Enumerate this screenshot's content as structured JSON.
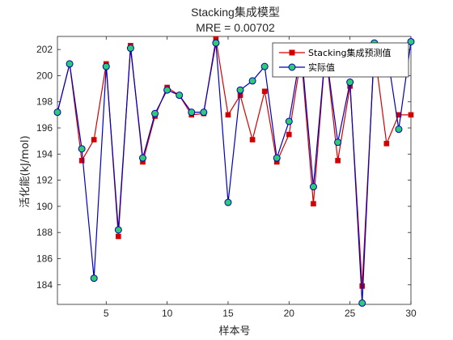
{
  "chart_data": {
    "type": "line",
    "title": "Stacking集成模型",
    "subtitle": "MRE = 0.00702",
    "xlabel": "样本号",
    "ylabel": "活化能(kJ/mol)",
    "xlim": [
      1,
      30
    ],
    "ylim": [
      182.5,
      203
    ],
    "xticks": [
      5,
      10,
      15,
      20,
      25,
      30
    ],
    "yticks": [
      184,
      186,
      188,
      190,
      192,
      194,
      196,
      198,
      200,
      202
    ],
    "legend_position": "top-right",
    "grid": false,
    "x": [
      1,
      2,
      3,
      4,
      5,
      6,
      7,
      8,
      9,
      10,
      11,
      12,
      13,
      14,
      15,
      16,
      17,
      18,
      19,
      20,
      21,
      22,
      23,
      24,
      25,
      26,
      27,
      28,
      29,
      30
    ],
    "series": [
      {
        "name": "Stacking集成预测值",
        "color": "#d40000",
        "marker": "square",
        "values": [
          197.2,
          200.9,
          193.5,
          195.1,
          200.9,
          187.7,
          202.3,
          193.4,
          196.9,
          199.1,
          198.5,
          197.0,
          197.1,
          202.8,
          197.0,
          198.5,
          195.1,
          198.8,
          193.4,
          195.5,
          201.5,
          190.2,
          202.0,
          193.5,
          199.2,
          183.9,
          202.0,
          194.8,
          197.0,
          197.0
        ]
      },
      {
        "name": "实际值",
        "color": "#0000bd",
        "marker": "circle",
        "marker_fill": "#2ecc71",
        "values": [
          197.2,
          200.9,
          194.4,
          184.5,
          200.7,
          188.2,
          202.1,
          193.7,
          197.1,
          198.9,
          198.5,
          197.2,
          197.2,
          202.5,
          190.3,
          198.9,
          199.6,
          200.7,
          193.7,
          196.5,
          202.0,
          191.5,
          202.0,
          194.9,
          199.5,
          182.6,
          202.5,
          202.0,
          195.9,
          202.6
        ]
      }
    ]
  }
}
